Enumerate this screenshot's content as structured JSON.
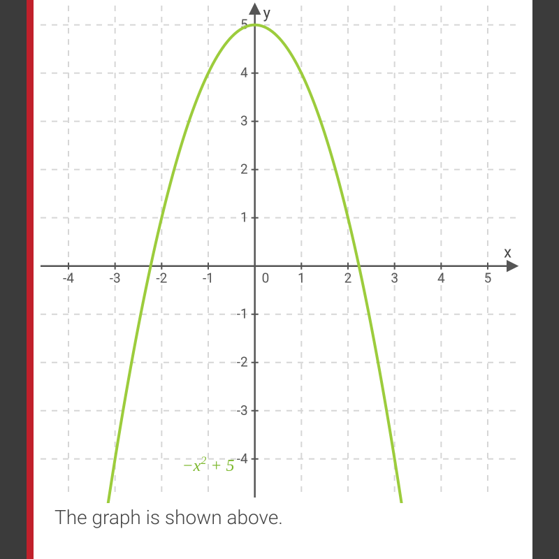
{
  "frame": {
    "side_bar_color": "#3b3b3b",
    "accent_bar_color": "#c0202b"
  },
  "caption": "The graph is shown above.",
  "chart": {
    "type": "line",
    "background_color": "#ffffff",
    "grid_color": "#d6d6d6",
    "grid_dash": "8 8",
    "grid_stroke_width": 2,
    "axis_color": "#555555",
    "axis_stroke_width": 2.5,
    "tick_color": "#555555",
    "tick_label_color": "#555555",
    "tick_font_size": 19,
    "axis_label_font_size": 22,
    "x": {
      "label": "x",
      "min": -4.6,
      "max": 5.6,
      "ticks": [
        -4,
        -3,
        -2,
        -1,
        0,
        1,
        2,
        3,
        4,
        5
      ],
      "tick_labels": [
        "-4",
        "-3",
        "-2",
        "-1",
        "0",
        "1",
        "2",
        "3",
        "4",
        "5"
      ]
    },
    "y": {
      "label": "y",
      "min": -4.8,
      "max": 5.4,
      "ticks": [
        -4,
        -3,
        -2,
        -1,
        1,
        2,
        3,
        4,
        5
      ],
      "tick_labels": [
        "-4",
        "-3",
        "-2",
        "-1",
        "1",
        "2",
        "3",
        "4",
        "5"
      ]
    },
    "curve": {
      "color": "#9ccc3c",
      "stroke_width": 4,
      "formula_label": "−x² + 5",
      "label_color": "#7db82e",
      "a": -1,
      "b": 0,
      "c": 5,
      "x_from": -3.2,
      "x_to": 3.2,
      "samples": 120
    }
  }
}
